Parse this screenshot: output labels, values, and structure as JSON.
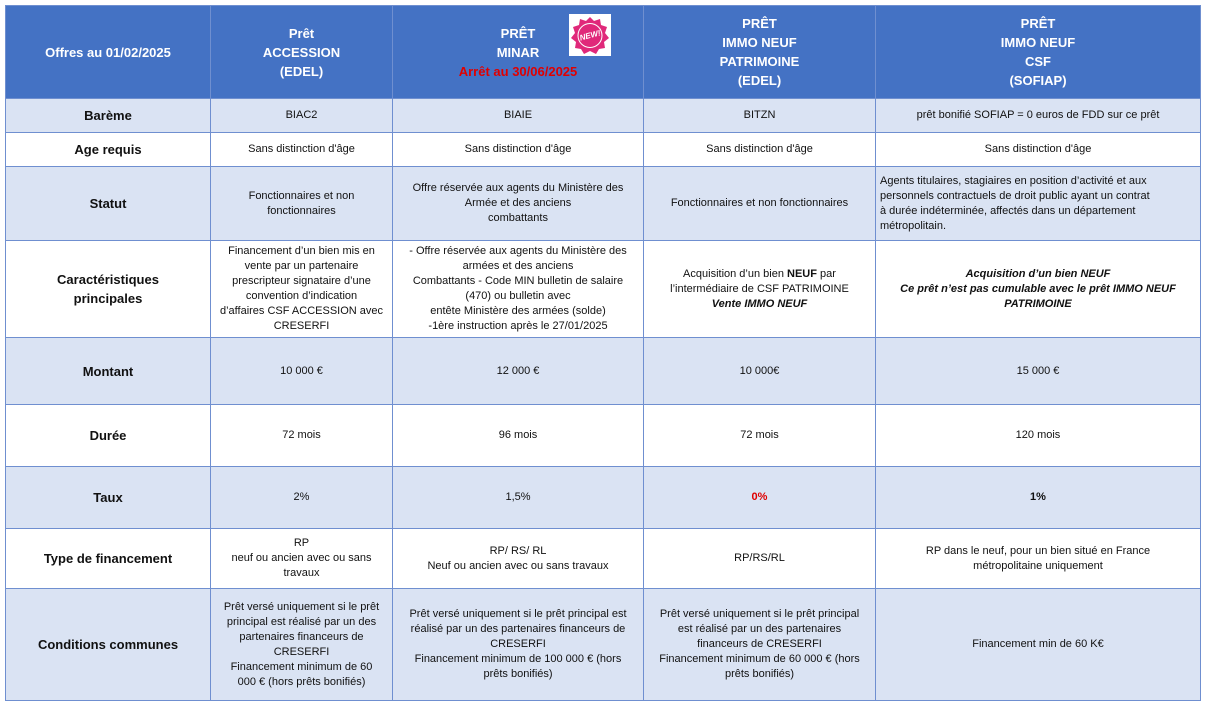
{
  "header": {
    "label": "Offres au 01/02/2025",
    "badge": "NEW!",
    "columns": [
      [
        "Prêt",
        "ACCESSION",
        "(EDEL)"
      ],
      [
        "PRÊT",
        "MINAR",
        "Arrêt au 30/06/2025"
      ],
      [
        "PRÊT",
        "IMMO NEUF",
        "PATRIMOINE",
        "(EDEL)"
      ],
      [
        "PRÊT",
        "IMMO NEUF",
        "CSF",
        "(SOFIAP)"
      ]
    ]
  },
  "rows": [
    {
      "label": [
        "Barème"
      ],
      "cells": [
        [
          "BIAC2"
        ],
        [
          "BIAIE"
        ],
        [
          "BITZN"
        ],
        [
          "prêt bonifié SOFIAP = 0 euros de FDD sur ce prêt"
        ]
      ]
    },
    {
      "label": [
        "Age requis"
      ],
      "cells": [
        [
          "Sans distinction d'âge"
        ],
        [
          "Sans distinction d'âge"
        ],
        [
          "Sans distinction d'âge"
        ],
        [
          "Sans distinction d'âge"
        ]
      ]
    },
    {
      "label": [
        "Statut"
      ],
      "cells": [
        [
          "Fonctionnaires et non",
          "fonctionnaires"
        ],
        [
          "Offre réservée aux agents du Ministère des",
          "Armée et des anciens",
          "combattants"
        ],
        [
          "Fonctionnaires et non fonctionnaires"
        ],
        [
          "Agents titulaires, stagiaires en position d’activité et aux",
          "personnels contractuels de droit public ayant un contrat",
          "à durée indéterminée, affectés dans un département",
          "métropolitain."
        ]
      ]
    },
    {
      "label": [
        "Caractéristiques",
        "principales"
      ],
      "cells": [
        [
          "Financement d’un bien mis en",
          "vente par un partenaire",
          "prescripteur signataire d’une",
          "convention d’indication",
          "d’affaires CSF ACCESSION avec",
          "CRESERFI"
        ],
        [
          "- Offre réservée aux agents du Ministère des",
          "armées et des anciens",
          "Combattants - Code MIN bulletin de salaire",
          "(470) ou bulletin avec",
          "entête Ministère des armées (solde)",
          "-1ère instruction après le 27/01/2025"
        ],
        [
          [
            "Acquisition d’un bien ",
            "NEUF",
            " par"
          ],
          "l’intermédiaire de CSF PATRIMOINE",
          "Vente IMMO NEUF"
        ],
        [
          "Acquisition d’un bien NEUF",
          "Ce prêt n’est pas cumulable avec le prêt IMMO NEUF",
          "PATRIMOINE"
        ]
      ]
    },
    {
      "label": [
        "Montant"
      ],
      "cells": [
        [
          "10 000 €"
        ],
        [
          "12 000 €"
        ],
        [
          "10 000€"
        ],
        [
          "15 000 €"
        ]
      ]
    },
    {
      "label": [
        "Durée"
      ],
      "cells": [
        [
          "72 mois"
        ],
        [
          "96 mois"
        ],
        [
          "72 mois"
        ],
        [
          "120 mois"
        ]
      ]
    },
    {
      "label": [
        "Taux"
      ],
      "cells": [
        [
          "2%"
        ],
        [
          "1,5%"
        ],
        [
          "0%"
        ],
        [
          "1%"
        ]
      ]
    },
    {
      "label": [
        "Type de financement"
      ],
      "cells": [
        [
          "RP",
          "neuf ou ancien avec ou sans",
          "travaux"
        ],
        [
          "RP/ RS/ RL",
          "Neuf ou ancien avec ou sans travaux"
        ],
        [
          "RP/RS/RL"
        ],
        [
          "RP dans le neuf, pour un bien situé en France",
          "métropolitaine uniquement"
        ]
      ]
    },
    {
      "label": [
        "Conditions communes"
      ],
      "cells": [
        [
          "Prêt versé uniquement si le prêt",
          "principal est réalisé par un des",
          "partenaires financeurs de",
          "CRESERFI",
          "Financement minimum de 60",
          "000 € (hors prêts bonifiés)"
        ],
        [
          "Prêt versé uniquement si le prêt principal est",
          "réalisé par un des partenaires financeurs de",
          "CRESERFI",
          "Financement minimum de 100 000 € (hors",
          "prêts bonifiés)"
        ],
        [
          "Prêt versé uniquement si le prêt principal",
          "est réalisé par un des partenaires",
          "financeurs de CRESERFI",
          "Financement minimum de 60 000 € (hors",
          "prêts bonifiés)"
        ],
        [
          "Financement min de 60 K€"
        ]
      ]
    }
  ]
}
